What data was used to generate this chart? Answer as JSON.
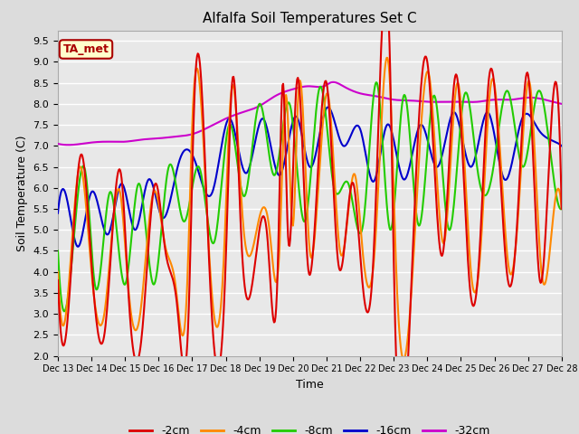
{
  "title": "Alfalfa Soil Temperatures Set C",
  "xlabel": "Time",
  "ylabel": "Soil Temperature (C)",
  "ylim": [
    2.0,
    9.75
  ],
  "yticks": [
    2.0,
    2.5,
    3.0,
    3.5,
    4.0,
    4.5,
    5.0,
    5.5,
    6.0,
    6.5,
    7.0,
    7.5,
    8.0,
    8.5,
    9.0,
    9.5
  ],
  "bg_color": "#dcdcdc",
  "plot_bg_color": "#e8e8e8",
  "line_colors": {
    "-2cm": "#dd0000",
    "-4cm": "#ff8800",
    "-8cm": "#22cc00",
    "-16cm": "#0000cc",
    "-32cm": "#cc00cc"
  },
  "legend_labels": [
    "-2cm",
    "-4cm",
    "-8cm",
    "-16cm",
    "-32cm"
  ],
  "ta_met_label": "TA_met",
  "ta_met_box_color": "#ffffcc",
  "ta_met_text_color": "#aa0000",
  "ta_met_border_color": "#aa0000",
  "x_tick_labels": [
    "Dec 13",
    "Dec 14",
    "Dec 15",
    "Dec 16",
    "Dec 17",
    "Dec 18",
    "Dec 19",
    "Dec 20",
    "Dec 21",
    "Dec 22",
    "Dec 23",
    "Dec 24",
    "Dec 25",
    "Dec 26",
    "Dec 27",
    "Dec 28"
  ],
  "figsize": [
    6.4,
    4.8
  ],
  "dpi": 100
}
